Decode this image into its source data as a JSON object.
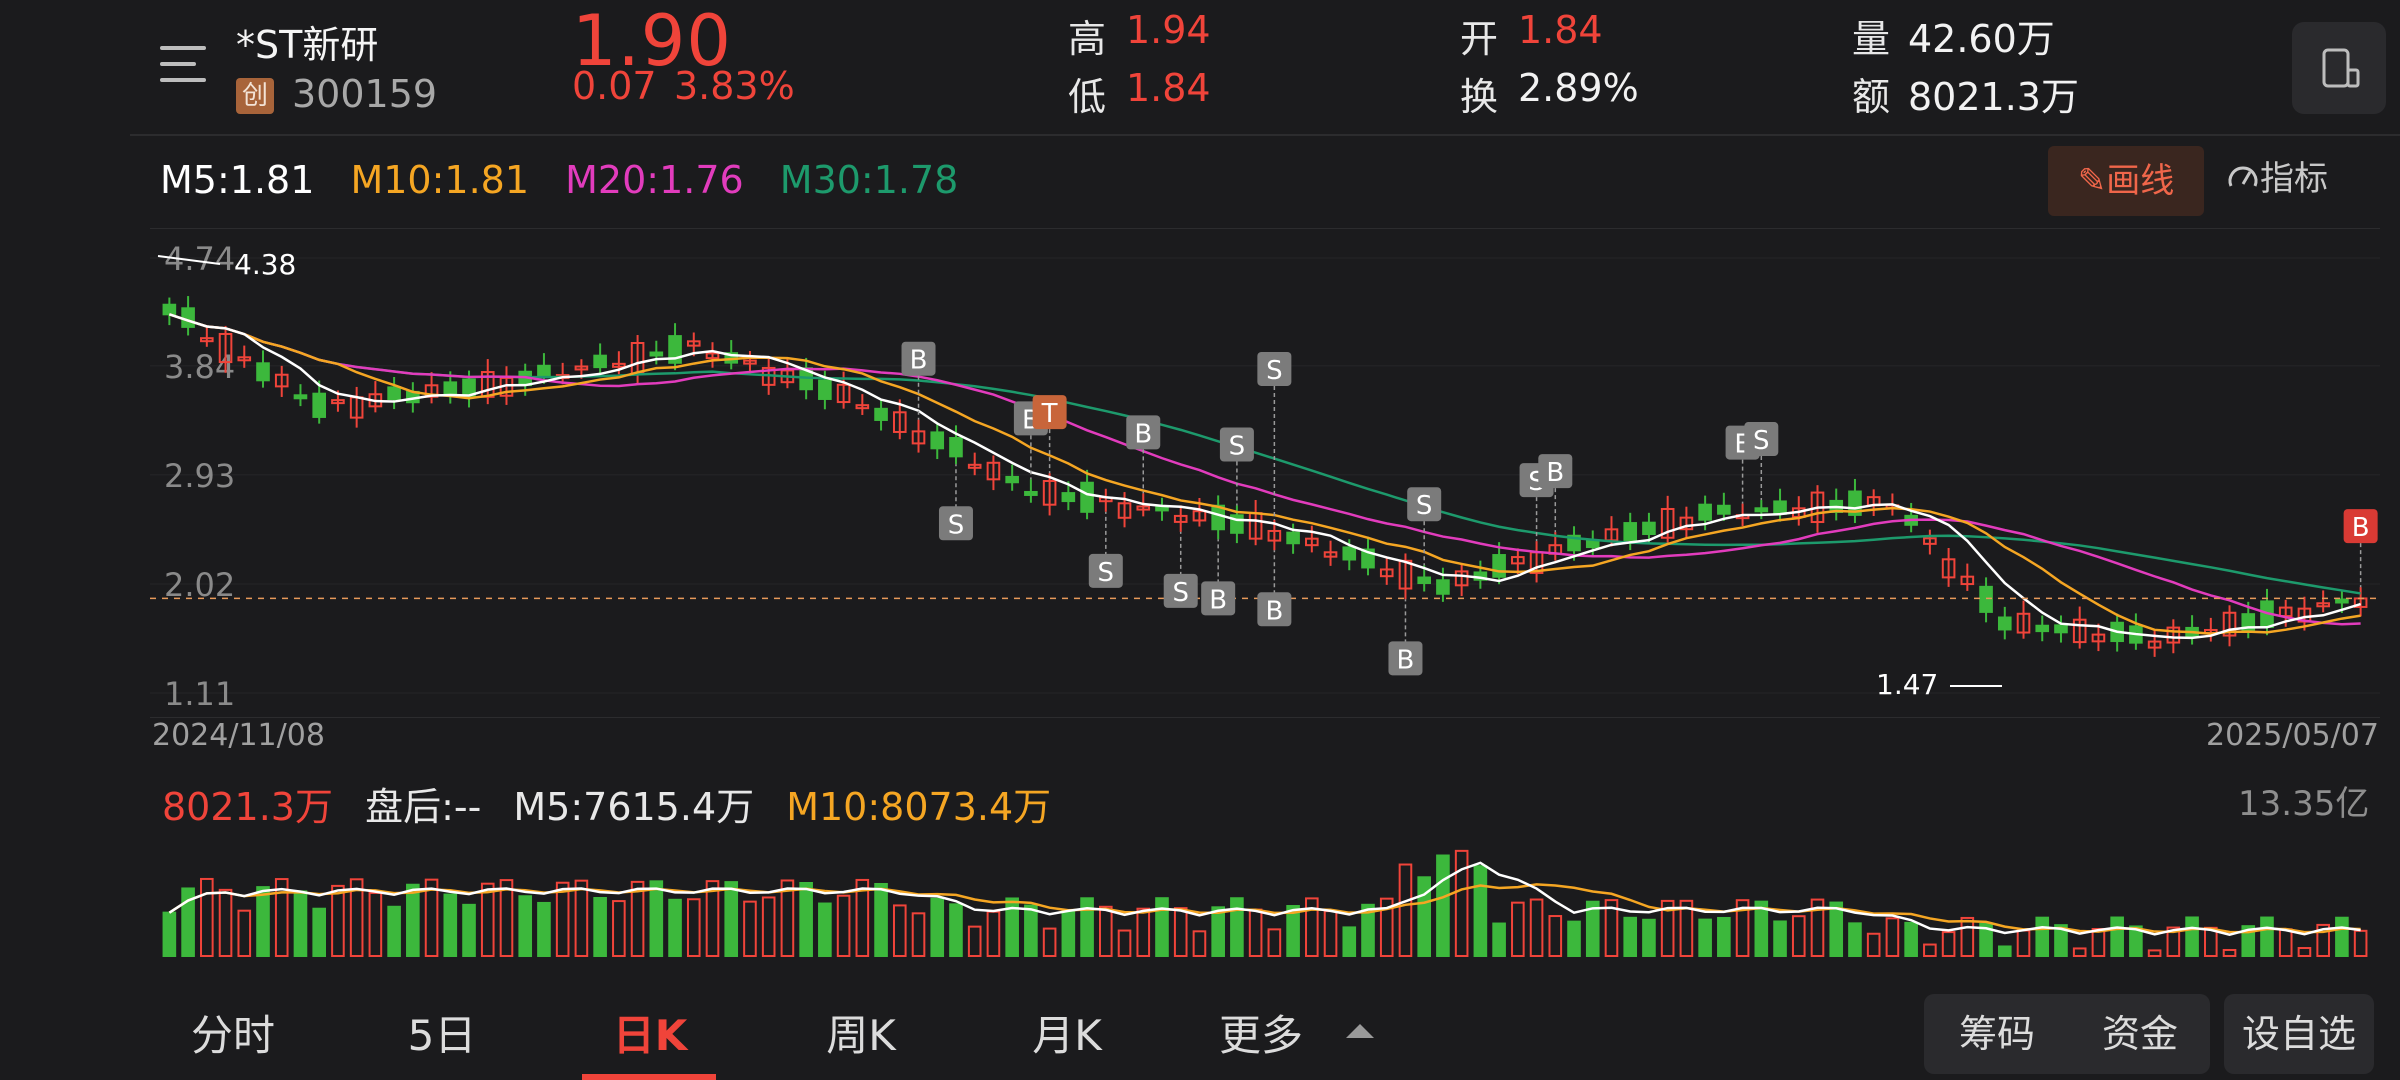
{
  "header": {
    "stock_name": "*ST新研",
    "board_badge": "创",
    "stock_code": "300159",
    "price": "1.90",
    "change": "0.07",
    "change_pct": "3.83%",
    "high_label": "高",
    "high_value": "1.94",
    "low_label": "低",
    "low_value": "1.84",
    "open_label": "开",
    "open_value": "1.84",
    "turnover_label": "换",
    "turnover_value": "2.89%",
    "volume_label": "量",
    "volume_value": "42.60万",
    "amount_label": "额",
    "amount_value": "8021.3万"
  },
  "ma_legend": {
    "m5": "M5:1.81",
    "m10": "M10:1.81",
    "m20": "M20:1.76",
    "m30": "M30:1.78"
  },
  "toolbar": {
    "draw_label": "画线",
    "indicator_label": "指标"
  },
  "colors": {
    "up": "#f0443a",
    "down": "#3cb83c",
    "m5": "#ffffff",
    "m10": "#f5a623",
    "m20": "#e23cbd",
    "m30": "#1d9a6c",
    "background": "#1b1b1d"
  },
  "chart_data": {
    "type": "candlestick",
    "y_ticks": [
      "4.74",
      "3.84",
      "2.93",
      "2.02",
      "1.11"
    ],
    "ylim": [
      1.11,
      4.74
    ],
    "start_date": "2024/11/08",
    "end_date": "2025/05/07",
    "high_marker": "4.38",
    "low_marker": "1.47",
    "last_price_line": 1.9,
    "trade_markers": [
      "B",
      "S",
      "B",
      "T",
      "S",
      "B",
      "S",
      "B",
      "S",
      "S",
      "B",
      "B",
      "S",
      "S",
      "B",
      "E",
      "S",
      "B"
    ],
    "volume": {
      "latest": "8021.3万",
      "after_hours": "盘后:--",
      "m5": "M5:7615.4万",
      "m10": "M10:8073.4万",
      "max_label": "13.35亿"
    }
  },
  "tabs": [
    "分时",
    "5日",
    "日K",
    "周K",
    "月K",
    "更多"
  ],
  "active_tab": "日K",
  "bottom_buttons": {
    "chips": "筹码",
    "funds": "资金",
    "watchlist": "设自选"
  }
}
